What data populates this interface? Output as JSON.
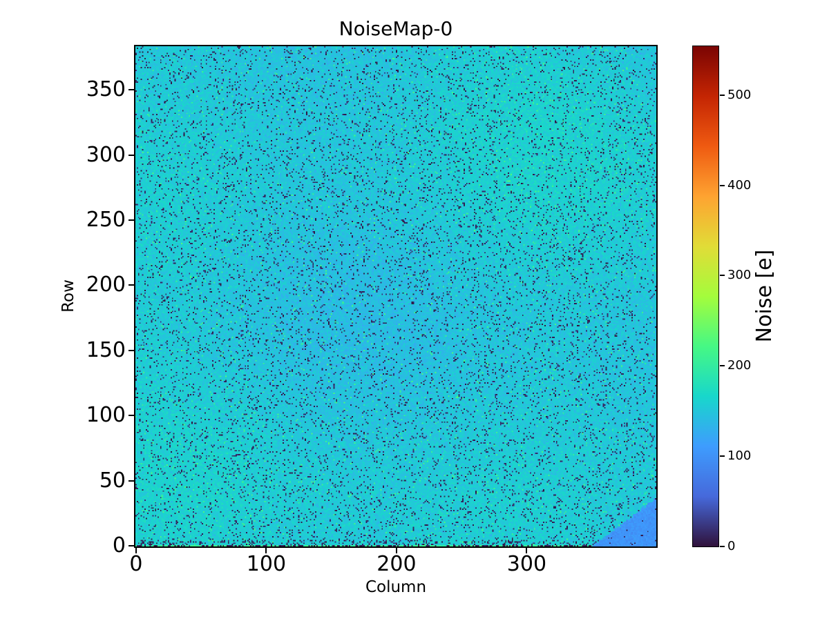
{
  "chart_data": {
    "type": "heatmap",
    "title": "NoiseMap-0",
    "xlabel": "Column",
    "ylabel": "Row",
    "colorbar_label": "Noise [e]",
    "n_cols": 400,
    "n_rows": 384,
    "x_range": [
      0,
      400
    ],
    "y_range": [
      0,
      384
    ],
    "x_ticks": [
      0,
      100,
      200,
      300
    ],
    "y_ticks": [
      0,
      50,
      100,
      150,
      200,
      250,
      300,
      350
    ],
    "colorbar_ticks": [
      0,
      100,
      200,
      300,
      400,
      500
    ],
    "vmin": 0,
    "vmax": 554,
    "colormap": "turbo",
    "colormap_stops": [
      "#30123b",
      "#4669db",
      "#3e9cfe",
      "#18d7cb",
      "#46f884",
      "#a4fc3c",
      "#e1dc37",
      "#fea331",
      "#ef5a11",
      "#c42503",
      "#7a0403"
    ],
    "background_color": "#ffffff",
    "field": {
      "mean_noise_e": 152,
      "sigma_e": 9,
      "dead_pixel_fraction": 0.07,
      "hot_green_fraction": 0.015,
      "hot_green_min": 195,
      "hot_green_max": 230
    },
    "bottom_edge": {
      "noisy_rows": 4,
      "dead_fraction": 0.22,
      "row0_green_value": 205,
      "row0_dead_fraction": 0.45
    },
    "low_noise_patch": {
      "location": "bottom-right-corner",
      "mean_noise_e": 103,
      "sigma_e": 6,
      "col_at_row0": 351,
      "row_extent": 37,
      "dead_fraction": 0.02
    }
  }
}
